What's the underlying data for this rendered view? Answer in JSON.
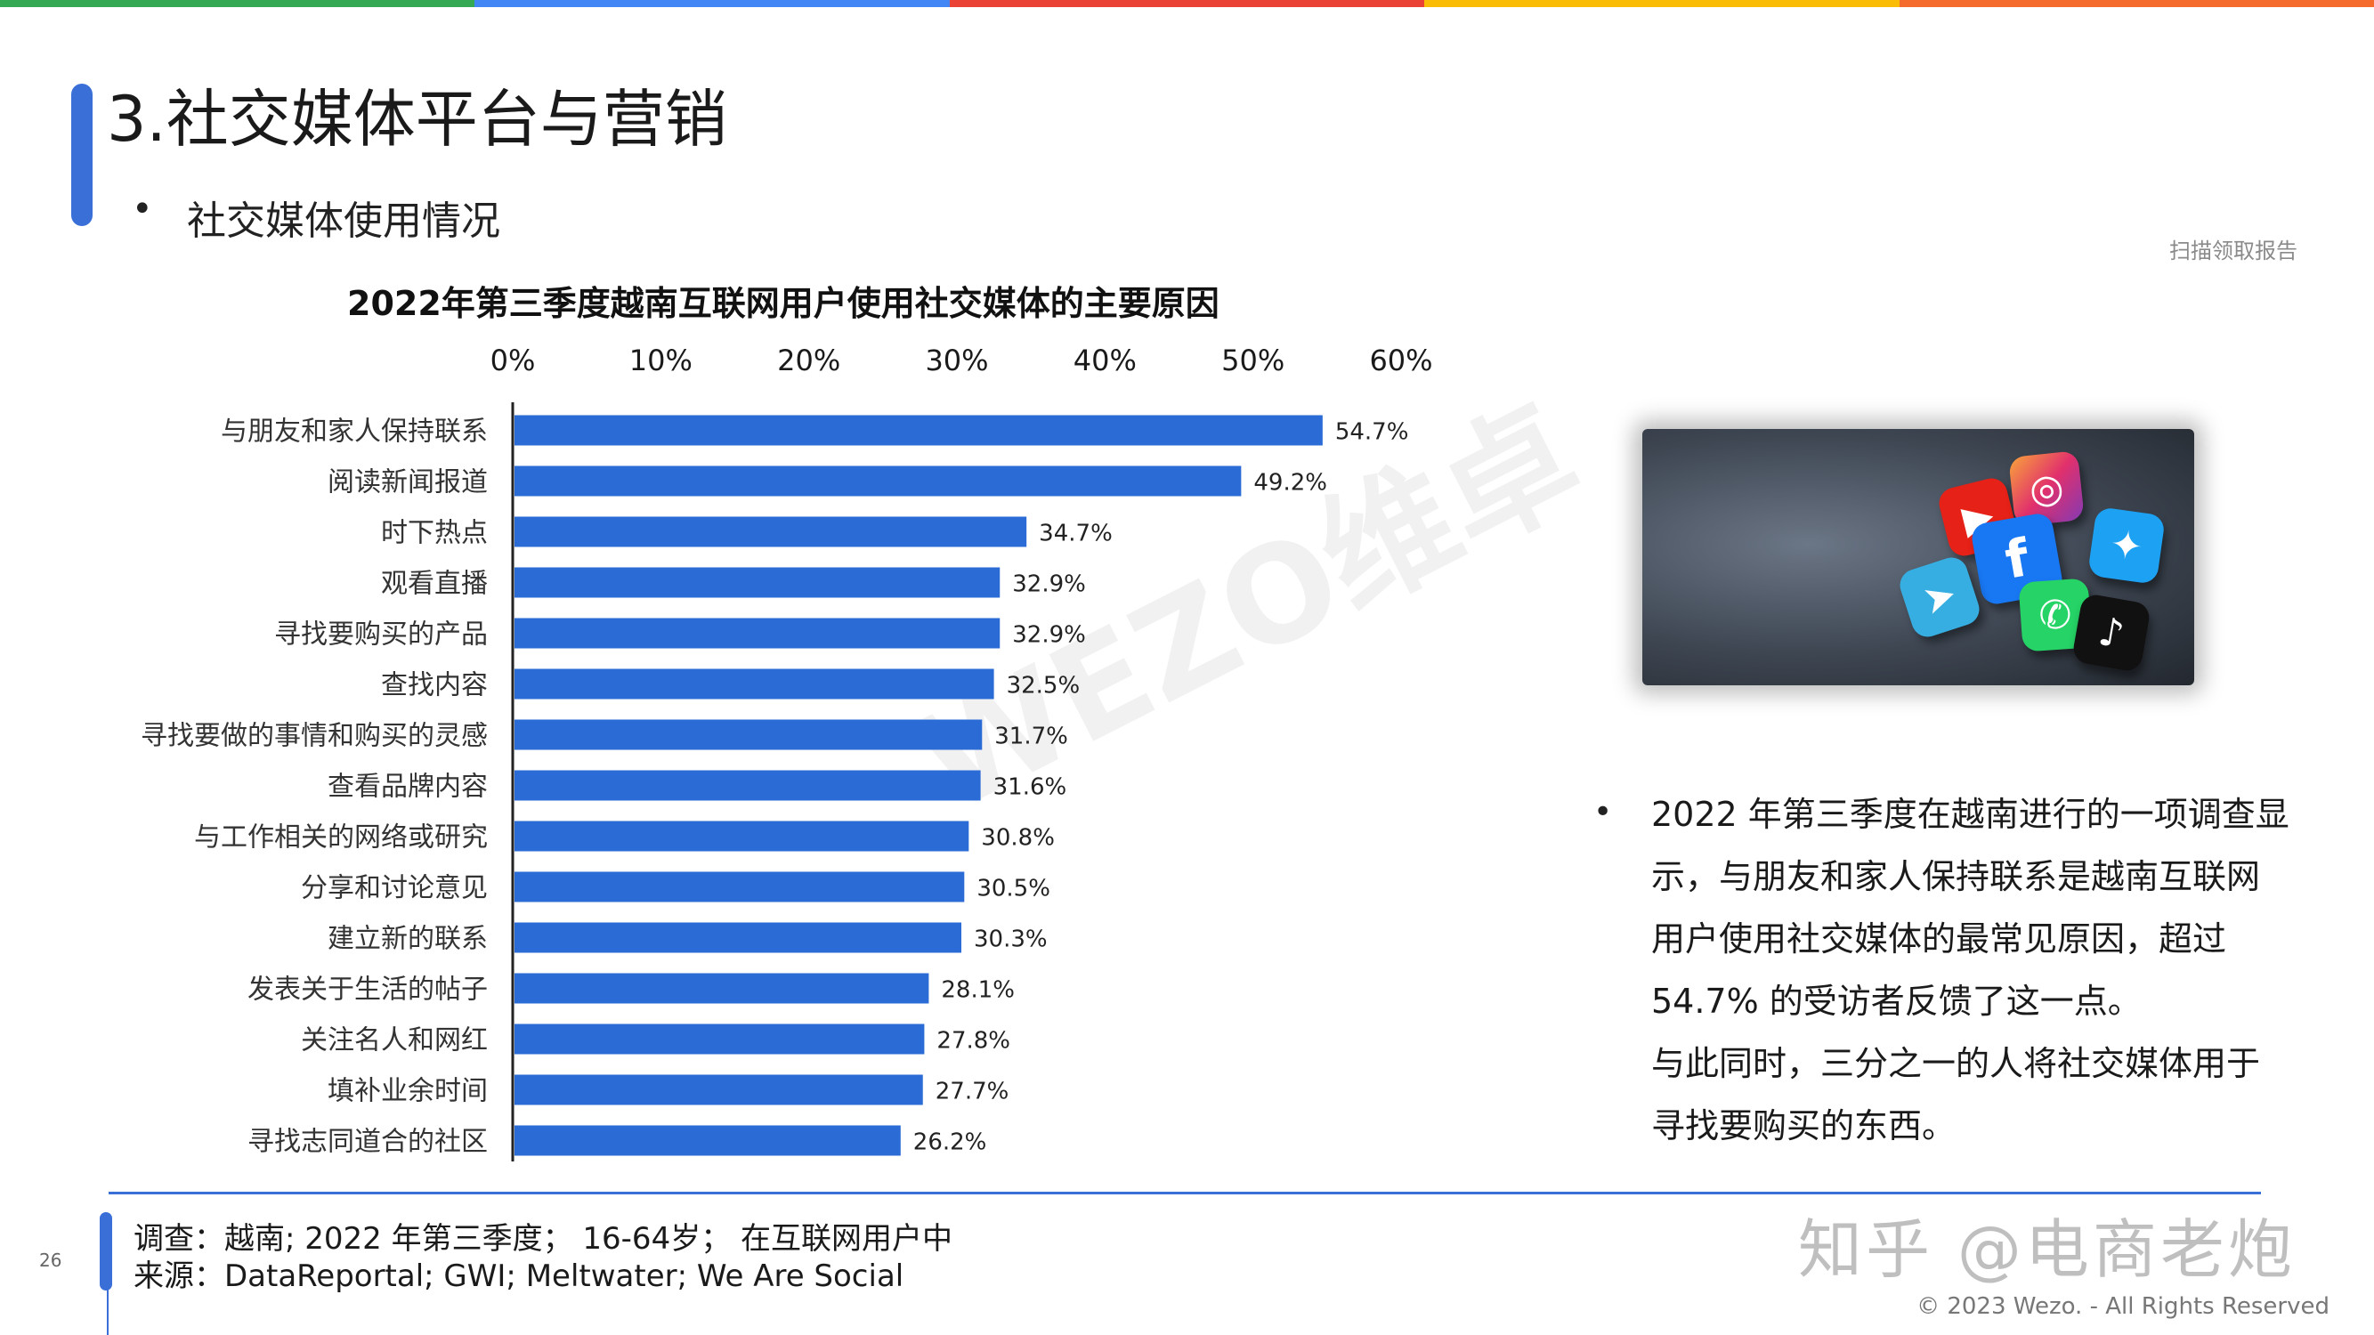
{
  "header": {
    "title": "3.社交媒体平台与营销",
    "subtitle": "社交媒体使用情况",
    "bullet": "•",
    "scan_tag": "扫描领取报告"
  },
  "colors": {
    "accent": "#3a6fd8",
    "bar": "#2a6bd6",
    "topbar": [
      "#34a853",
      "#4285f4",
      "#ea4335",
      "#fbbc05",
      "#f56a2d"
    ]
  },
  "chart_data": {
    "type": "bar",
    "orientation": "horizontal",
    "title": "2022年第三季度越南互联网用户使用社交媒体的主要原因",
    "categories": [
      "与朋友和家人保持联系",
      "阅读新闻报道",
      "时下热点",
      "观看直播",
      "寻找要购买的产品",
      "查找内容",
      "寻找要做的事情和购买的灵感",
      "查看品牌内容",
      "与工作相关的网络或研究",
      "分享和讨论意见",
      "建立新的联系",
      "发表关于生活的帖子",
      "关注名人和网红",
      "填补业余时间",
      "寻找志同道合的社区"
    ],
    "values": [
      54.7,
      49.2,
      34.7,
      32.9,
      32.9,
      32.5,
      31.7,
      31.6,
      30.8,
      30.5,
      30.3,
      28.1,
      27.8,
      27.7,
      26.2
    ],
    "value_labels": [
      "54.7%",
      "49.2%",
      "34.7%",
      "32.9%",
      "32.9%",
      "32.5%",
      "31.7%",
      "31.6%",
      "30.8%",
      "30.5%",
      "30.3%",
      "28.1%",
      "27.8%",
      "27.7%",
      "26.2%"
    ],
    "xticks": [
      "0%",
      "10%",
      "20%",
      "30%",
      "40%",
      "50%",
      "60%"
    ],
    "xlim": [
      0,
      60
    ],
    "xlabel": "",
    "ylabel": "",
    "grid": false
  },
  "image": {
    "description_icons": [
      "youtube-icon",
      "instagram-icon",
      "facebook-icon",
      "twitter-icon",
      "telegram-icon",
      "whatsapp-icon",
      "tiktok-icon"
    ]
  },
  "description": {
    "paragraph1": "2022 年第三季度在越南进行的一项调查显示，与朋友和家人保持联系是越南互联网用户使用社交媒体的最常见原因，超过 54.7% 的受访者反馈了这一点。",
    "paragraph2": "与此同时，三分之一的人将社交媒体用于寻找要购买的东西。"
  },
  "footer": {
    "survey": "调查：越南; 2022 年第三季度； 16-64岁； 在互联网用户中",
    "source": "来源：DataReportal; GWI; Meltwater; We Are Social",
    "page_number": "26",
    "watermark": "知乎 @电商老炮",
    "copyright": "© 2023 Wezo. - All Rights Reserved",
    "diagonal_watermark": "WEZO维卓"
  }
}
